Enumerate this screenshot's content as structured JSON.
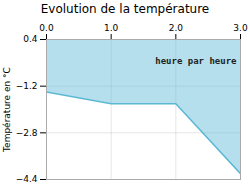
{
  "chart_data": {
    "type": "line",
    "title": "Evolution de la température",
    "ylabel": "Température en °C",
    "annotation": "heure par heure",
    "x": [
      0,
      1,
      2,
      3
    ],
    "values": [
      -1.4,
      -1.8,
      -1.8,
      -4.2
    ],
    "color": "#5bb8d4",
    "xlim": [
      0,
      3
    ],
    "xticks": [
      0,
      1,
      2,
      3
    ],
    "ylim": [
      -4.4,
      0.4
    ],
    "yticks": [
      0.4,
      -1.2,
      -2.8,
      -4.4
    ],
    "grid": true
  }
}
